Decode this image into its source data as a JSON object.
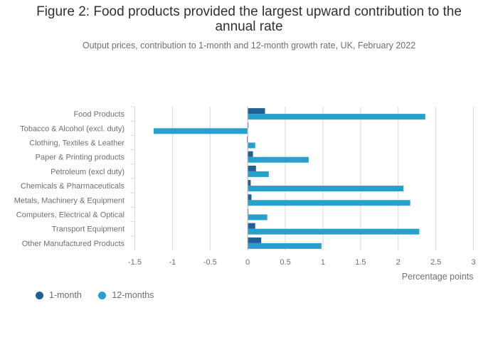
{
  "header": {
    "title_line1": "Figure 2: Food products provided the largest upward contribution to the",
    "title_line2": "annual rate",
    "subtitle": "Output prices, contribution to 1-month and 12-month growth rate, UK, February 2022"
  },
  "colors": {
    "one_month": "#206095",
    "twelve_months": "#27a0cc",
    "grid": "#d9d9d9",
    "axis_text": "#707071"
  },
  "chart_data": {
    "type": "bar",
    "orientation": "horizontal",
    "categories": [
      "Food Products",
      "Tobacco & Alcohol (excl. duty)",
      "Clothing, Textiles & Leather",
      "Paper & Printing products",
      "Petroleum (excl duty)",
      "Chemicals & Pharmaceuticals",
      "Metals, Machinery & Equipment",
      "Computers, Electrical & Optical",
      "Transport Equipment",
      "Other Manufactured Products"
    ],
    "series": [
      {
        "name": "1-month",
        "values": [
          0.23,
          0.01,
          -0.01,
          0.07,
          0.11,
          0.04,
          0.05,
          0.0,
          0.1,
          0.18
        ]
      },
      {
        "name": "12-months",
        "values": [
          2.36,
          -1.25,
          0.1,
          0.81,
          0.28,
          2.07,
          2.16,
          0.26,
          2.28,
          0.98
        ]
      }
    ],
    "xlim": [
      -1.5,
      3
    ],
    "xticks": [
      "-1.5",
      "-1",
      "-0.5",
      "0",
      "0.5",
      "1",
      "1.5",
      "2",
      "2.5",
      "3"
    ],
    "xlabel": "Percentage points",
    "ylabel": "",
    "grid": true,
    "legend_position": "bottom-left"
  },
  "legend": {
    "items": [
      {
        "label": "1-month"
      },
      {
        "label": "12-months"
      }
    ]
  }
}
